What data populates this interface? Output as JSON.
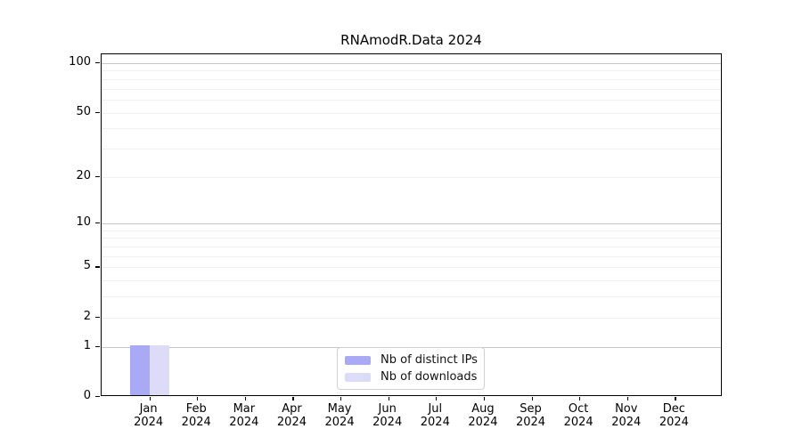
{
  "title": "RNAmodR.Data 2024",
  "chart_data": {
    "type": "bar",
    "title": "RNAmodR.Data 2024",
    "categories": [
      "Jan 2024",
      "Feb 2024",
      "Mar 2024",
      "Apr 2024",
      "May 2024",
      "Jun 2024",
      "Jul 2024",
      "Aug 2024",
      "Sep 2024",
      "Oct 2024",
      "Nov 2024",
      "Dec 2024"
    ],
    "month_labels": [
      "Jan",
      "Feb",
      "Mar",
      "Apr",
      "May",
      "Jun",
      "Jul",
      "Aug",
      "Sep",
      "Oct",
      "Nov",
      "Dec"
    ],
    "year_label": "2024",
    "series": [
      {
        "name": "Nb of distinct IPs",
        "color": "#a9a9f5",
        "values": [
          1,
          0,
          0,
          0,
          0,
          0,
          0,
          0,
          0,
          0,
          0,
          0
        ]
      },
      {
        "name": "Nb of downloads",
        "color": "#dcdcf8",
        "values": [
          1,
          0,
          0,
          0,
          0,
          0,
          0,
          0,
          0,
          0,
          0,
          0
        ]
      }
    ],
    "xlabel": "",
    "ylabel": "",
    "yscale": "log1p",
    "ylim": [
      0,
      113
    ],
    "ytick_values": [
      0,
      1,
      2,
      5,
      10,
      20,
      50,
      100
    ],
    "major_grid_values": [
      1,
      10,
      100
    ],
    "minor_grid_values": [
      2,
      3,
      4,
      5,
      6,
      7,
      8,
      9,
      20,
      30,
      40,
      50,
      60,
      70,
      80,
      90
    ],
    "grid": "horizontal",
    "legend_position": "bottom-center"
  },
  "legend": {
    "items": [
      {
        "label": "Nb of distinct IPs",
        "color": "#a9a9f5"
      },
      {
        "label": "Nb of downloads",
        "color": "#dcdcf8"
      }
    ]
  },
  "colors": {
    "bar_distinct_ips": "#a9a9f5",
    "bar_downloads": "#dcdcf8",
    "grid_major": "#c6c6c6",
    "grid_minor": "#efefef",
    "axis": "#000000"
  }
}
